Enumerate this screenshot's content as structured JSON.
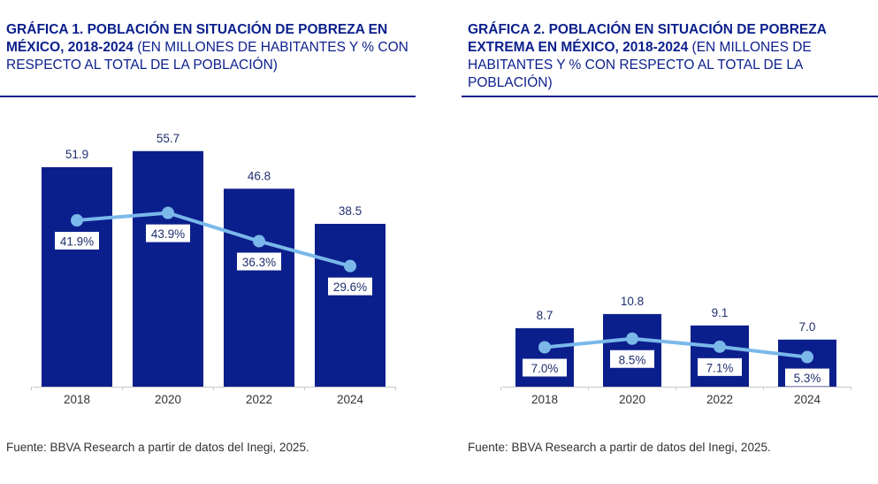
{
  "chart_data": [
    {
      "type": "bar",
      "title_bold": "GRÁFICA 1. POBLACIÓN EN SITUACIÓN DE POBREZA EN MÉXICO, 2018-2024",
      "title_rest": "(EN MILLONES DE HABITANTES Y % CON RESPECTO AL TOTAL DE LA POBLACIÓN)",
      "categories": [
        "2018",
        "2020",
        "2022",
        "2024"
      ],
      "series": [
        {
          "values": [
            51.9,
            55.7,
            46.8,
            38.5
          ],
          "labels": [
            "51.9",
            "55.7",
            "46.8",
            "38.5"
          ]
        },
        {
          "type": "line",
          "values": [
            41.9,
            43.9,
            36.3,
            29.6
          ],
          "labels": [
            "41.9%",
            "43.9%",
            "36.3%",
            "29.6%"
          ]
        }
      ],
      "bar_color": "#0b1f8c",
      "line_color": "#7ab8ea",
      "source": "Fuente: BBVA Research a partir de datos del Inegi, 2025."
    },
    {
      "type": "bar",
      "title_bold": "GRÁFICA 2. POBLACIÓN EN SITUACIÓN DE POBREZA EXTREMA EN MÉXICO, 2018-2024",
      "title_rest": "(EN MILLONES DE HABITANTES Y % CON RESPECTO AL TOTAL DE LA POBLACIÓN)",
      "categories": [
        "2018",
        "2020",
        "2022",
        "2024"
      ],
      "series": [
        {
          "values": [
            8.7,
            10.8,
            9.1,
            7.0
          ],
          "labels": [
            "8.7",
            "10.8",
            "9.1",
            "7.0"
          ]
        },
        {
          "type": "line",
          "values": [
            7.0,
            8.5,
            7.1,
            5.3
          ],
          "labels": [
            "7.0%",
            "8.5%",
            "7.1%",
            "5.3%"
          ]
        }
      ],
      "bar_color": "#0b1f8c",
      "line_color": "#7ab8ea",
      "source": "Fuente: BBVA Research a partir de datos del Inegi, 2025."
    }
  ]
}
